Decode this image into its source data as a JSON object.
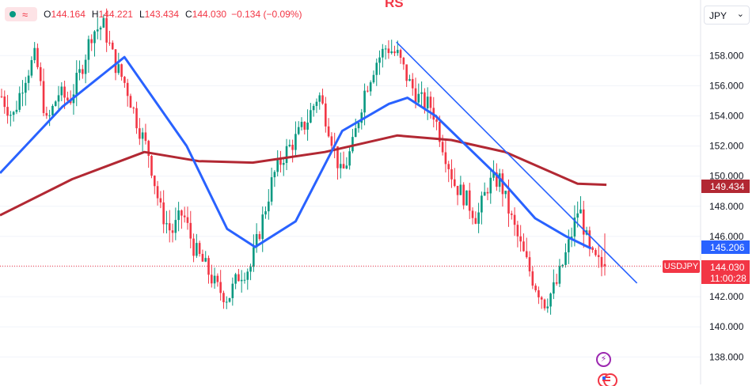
{
  "header": {
    "open_label": "O",
    "open": "144.164",
    "high_label": "H",
    "high": "144.221",
    "low_label": "L",
    "low": "143.434",
    "close_label": "C",
    "close": "144.030",
    "change": "−0.134 (−0.09%)",
    "wave_icon": "≈"
  },
  "currency": {
    "label": "JPY",
    "chevron": "⌄"
  },
  "watermark": "RS",
  "price_tags": {
    "ma200_value": "149.434",
    "ma50_value": "145.206",
    "last_symbol": "USDJPY",
    "last_value": "144.030",
    "countdown": "11:00:28"
  },
  "events": {
    "bolt_icon": "⚡"
  },
  "colors": {
    "up": "#089981",
    "down": "#f23645",
    "ma_fast": "#2962ff",
    "ma_slow": "#b22833",
    "trendline": "#2962ff",
    "grid": "#f0f3fa",
    "axis_text": "#131722"
  },
  "chart_data": {
    "type": "line",
    "description_of_series": "USDJPY daily candles (approximate) with two moving averages and a descending trendline",
    "ylim": [
      136.0,
      160.5
    ],
    "y_ticks": [
      "138.000",
      "140.000",
      "142.000",
      "144.000",
      "146.000",
      "148.000",
      "150.000",
      "152.000",
      "154.000",
      "156.000",
      "158.000"
    ],
    "current_price": 144.03,
    "bars": 145,
    "close_path": [
      [
        0,
        155.3
      ],
      [
        4,
        153.9
      ],
      [
        8,
        156.5
      ],
      [
        12,
        158.0
      ],
      [
        16,
        153.4
      ],
      [
        20,
        155.5
      ],
      [
        24,
        155.0
      ],
      [
        28,
        157.0
      ],
      [
        32,
        159.6
      ],
      [
        36,
        160.0
      ],
      [
        40,
        157.5
      ],
      [
        44,
        156.0
      ],
      [
        48,
        153.5
      ],
      [
        52,
        151.5
      ],
      [
        56,
        147.8
      ],
      [
        60,
        146.2
      ],
      [
        64,
        147.6
      ],
      [
        68,
        145.2
      ],
      [
        72,
        144.0
      ],
      [
        76,
        142.6
      ],
      [
        80,
        141.9
      ],
      [
        84,
        143.5
      ],
      [
        88,
        144.0
      ],
      [
        92,
        147.0
      ],
      [
        96,
        150.0
      ],
      [
        100,
        151.5
      ],
      [
        104,
        152.5
      ],
      [
        108,
        153.7
      ],
      [
        112,
        155.5
      ],
      [
        116,
        153.0
      ],
      [
        120,
        150.0
      ],
      [
        124,
        152.0
      ],
      [
        128,
        155.5
      ],
      [
        132,
        157.5
      ],
      [
        136,
        158.6
      ],
      [
        140,
        158.0
      ],
      [
        144,
        156.2
      ],
      [
        148,
        155.0
      ],
      [
        152,
        154.6
      ],
      [
        156,
        152.0
      ],
      [
        160,
        149.5
      ],
      [
        164,
        148.5
      ],
      [
        168,
        147.2
      ],
      [
        172,
        149.5
      ],
      [
        176,
        149.8
      ],
      [
        180,
        147.2
      ],
      [
        184,
        145.0
      ],
      [
        188,
        143.0
      ],
      [
        192,
        141.6
      ],
      [
        196,
        142.8
      ],
      [
        200,
        145.2
      ],
      [
        204,
        148.0
      ],
      [
        208,
        144.7
      ],
      [
        212,
        144.0
      ]
    ],
    "ma_fast_points": [
      [
        0,
        150.2
      ],
      [
        20,
        154.6
      ],
      [
        40,
        157.9
      ],
      [
        60,
        152.0
      ],
      [
        73,
        146.5
      ],
      [
        82,
        145.3
      ],
      [
        95,
        147.0
      ],
      [
        110,
        153.0
      ],
      [
        125,
        154.8
      ],
      [
        131,
        155.2
      ],
      [
        140,
        154.0
      ],
      [
        150,
        152.0
      ],
      [
        160,
        150.0
      ],
      [
        172,
        147.2
      ],
      [
        182,
        146.0
      ],
      [
        190,
        145.2
      ]
    ],
    "ma_slow_points": [
      [
        0,
        147.4
      ],
      [
        20,
        149.8
      ],
      [
        40,
        151.6
      ],
      [
        55,
        151.0
      ],
      [
        70,
        150.9
      ],
      [
        90,
        151.6
      ],
      [
        110,
        152.7
      ],
      [
        125,
        152.4
      ],
      [
        140,
        151.6
      ],
      [
        160,
        149.5
      ],
      [
        168,
        149.43
      ]
    ],
    "trendline": {
      "from": [
        117,
        158.9
      ],
      "to": [
        188,
        142.9
      ]
    }
  }
}
